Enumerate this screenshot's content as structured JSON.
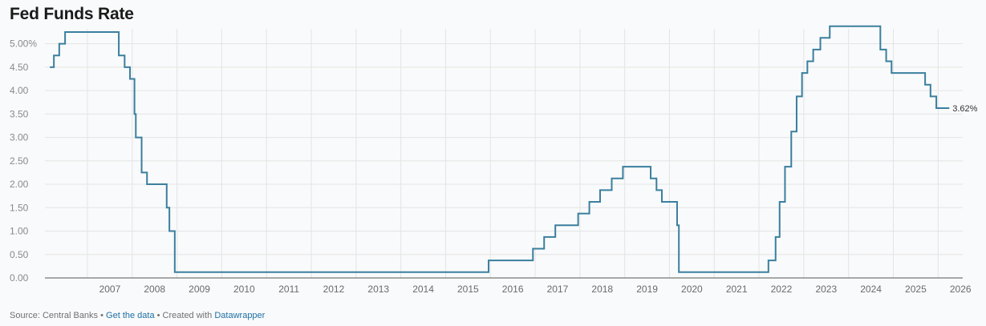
{
  "title": "Fed Funds Rate",
  "footer": {
    "source_text": "Source: Central Banks",
    "sep1": " • ",
    "get_data": "Get the data",
    "sep2": " • Created with ",
    "tool": "Datawrapper"
  },
  "colors": {
    "line": "#3a7f9e",
    "grid": "#e4e4e4",
    "background": "#f9fafb"
  },
  "chart_data": {
    "type": "line",
    "title": "Fed Funds Rate",
    "xlabel": "",
    "ylabel": "",
    "grid": true,
    "xlim": [
      2006.05,
      2026.55
    ],
    "ylim": [
      0,
      5.25
    ],
    "yticks": [
      {
        "v": 0,
        "label": "0.00"
      },
      {
        "v": 0.5,
        "label": "0.50"
      },
      {
        "v": 1,
        "label": "1.00"
      },
      {
        "v": 1.5,
        "label": "1.50"
      },
      {
        "v": 2,
        "label": "2.00"
      },
      {
        "v": 2.5,
        "label": "2.50"
      },
      {
        "v": 3,
        "label": "3.00"
      },
      {
        "v": 3.5,
        "label": "3.50"
      },
      {
        "v": 4,
        "label": "4.00"
      },
      {
        "v": 4.5,
        "label": "4.50"
      },
      {
        "v": 5,
        "label": "5.00%"
      }
    ],
    "xticks": [
      "2007",
      "2008",
      "2009",
      "2010",
      "2011",
      "2012",
      "2013",
      "2014",
      "2015",
      "2016",
      "2017",
      "2018",
      "2019",
      "2020",
      "2021",
      "2022",
      "2023",
      "2024",
      "2025",
      "2026"
    ],
    "end_label": "3.62%",
    "series": [
      {
        "step": true,
        "points": [
          [
            2006.16,
            4.5
          ],
          [
            2006.25,
            4.75
          ],
          [
            2006.37,
            5.0
          ],
          [
            2006.5,
            5.25
          ],
          [
            2007.7,
            4.75
          ],
          [
            2007.83,
            4.5
          ],
          [
            2007.95,
            4.25
          ],
          [
            2008.05,
            3.5
          ],
          [
            2008.08,
            3.0
          ],
          [
            2008.21,
            2.25
          ],
          [
            2008.33,
            2.0
          ],
          [
            2008.77,
            1.5
          ],
          [
            2008.83,
            1.0
          ],
          [
            2008.95,
            0.125
          ],
          [
            2015.96,
            0.375
          ],
          [
            2016.95,
            0.625
          ],
          [
            2017.2,
            0.875
          ],
          [
            2017.45,
            1.125
          ],
          [
            2017.96,
            1.375
          ],
          [
            2018.21,
            1.625
          ],
          [
            2018.45,
            1.875
          ],
          [
            2018.71,
            2.125
          ],
          [
            2018.96,
            2.375
          ],
          [
            2019.58,
            2.125
          ],
          [
            2019.71,
            1.875
          ],
          [
            2019.83,
            1.625
          ],
          [
            2020.17,
            1.125
          ],
          [
            2020.21,
            0.125
          ],
          [
            2022.21,
            0.375
          ],
          [
            2022.37,
            0.875
          ],
          [
            2022.46,
            1.625
          ],
          [
            2022.58,
            2.375
          ],
          [
            2022.72,
            3.125
          ],
          [
            2022.84,
            3.875
          ],
          [
            2022.96,
            4.375
          ],
          [
            2023.08,
            4.625
          ],
          [
            2023.21,
            4.875
          ],
          [
            2023.37,
            5.125
          ],
          [
            2023.58,
            5.375
          ],
          [
            2024.71,
            4.875
          ],
          [
            2024.84,
            4.625
          ],
          [
            2024.96,
            4.375
          ],
          [
            2025.71,
            4.125
          ],
          [
            2025.83,
            3.875
          ],
          [
            2025.96,
            3.625
          ],
          [
            2026.25,
            3.625
          ]
        ]
      }
    ]
  }
}
